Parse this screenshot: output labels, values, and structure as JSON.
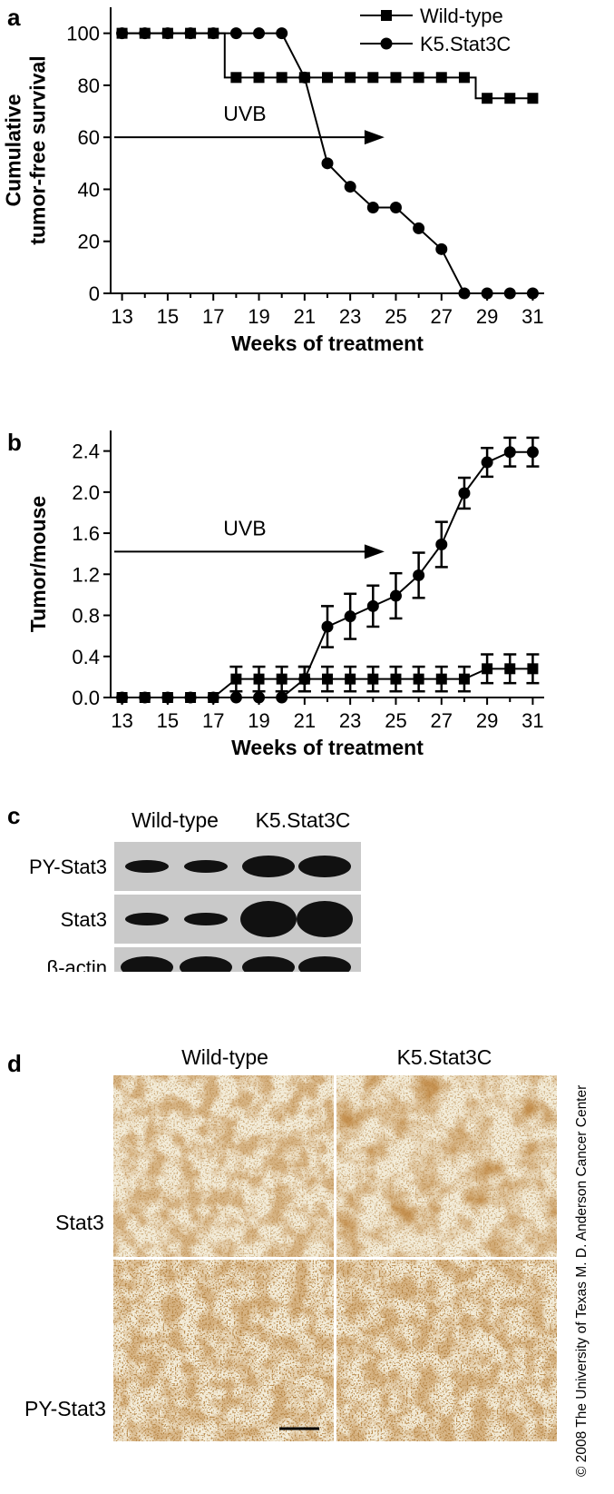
{
  "chart_data": [
    {
      "panel": "a",
      "type": "line",
      "xlabel": "Weeks of treatment",
      "ylabel": [
        "Cumulative",
        "tumor-free survival"
      ],
      "xlim": [
        12.5,
        31.5
      ],
      "ylim": [
        0,
        110
      ],
      "xticks": [
        13,
        15,
        17,
        19,
        21,
        23,
        25,
        27,
        29,
        31
      ],
      "yticks": [
        0,
        20,
        40,
        60,
        80,
        100
      ],
      "legend_position": "top-right",
      "annotation": {
        "text": "UVB",
        "arrow_from": 12.5,
        "arrow_to": 24.5,
        "y": 60
      },
      "series": [
        {
          "name": "Wild-type",
          "marker": "square",
          "x": [
            13,
            14,
            15,
            16,
            17,
            18,
            19,
            20,
            21,
            22,
            23,
            24,
            25,
            26,
            27,
            28,
            29,
            30,
            31
          ],
          "y": [
            100,
            100,
            100,
            100,
            100,
            83,
            83,
            83,
            83,
            83,
            83,
            83,
            83,
            83,
            83,
            83,
            75,
            75,
            75
          ],
          "step": true
        },
        {
          "name": "K5.Stat3C",
          "marker": "circle",
          "x": [
            13,
            14,
            15,
            16,
            17,
            18,
            19,
            20,
            21,
            22,
            23,
            24,
            25,
            26,
            27,
            28,
            29,
            30,
            31
          ],
          "y": [
            100,
            100,
            100,
            100,
            100,
            100,
            100,
            100,
            83,
            50,
            41,
            33,
            33,
            25,
            17,
            0,
            0,
            0,
            0
          ],
          "step": false
        }
      ]
    },
    {
      "panel": "b",
      "type": "line",
      "xlabel": "Weeks of treatment",
      "ylabel": [
        "Tumor/mouse"
      ],
      "xlim": [
        12.5,
        31.5
      ],
      "ylim": [
        0,
        2.6
      ],
      "xticks": [
        13,
        15,
        17,
        19,
        21,
        23,
        25,
        27,
        29,
        31
      ],
      "yticks": [
        0.0,
        0.4,
        0.8,
        1.2,
        1.6,
        2.0,
        2.4
      ],
      "annotation": {
        "text": "UVB",
        "arrow_from": 12.5,
        "arrow_to": 24.5,
        "y": 1.42
      },
      "series": [
        {
          "name": "Wild-type",
          "marker": "square",
          "x": [
            13,
            14,
            15,
            16,
            17,
            18,
            19,
            20,
            21,
            22,
            23,
            24,
            25,
            26,
            27,
            28,
            29,
            30,
            31
          ],
          "y": [
            0,
            0,
            0,
            0,
            0,
            0.18,
            0.18,
            0.18,
            0.18,
            0.18,
            0.18,
            0.18,
            0.18,
            0.18,
            0.18,
            0.18,
            0.28,
            0.28,
            0.28
          ],
          "err": [
            0,
            0,
            0,
            0,
            0,
            0.12,
            0.12,
            0.12,
            0.12,
            0.12,
            0.12,
            0.12,
            0.12,
            0.12,
            0.12,
            0.12,
            0.14,
            0.14,
            0.14
          ]
        },
        {
          "name": "K5.Stat3C",
          "marker": "circle",
          "x": [
            13,
            14,
            15,
            16,
            17,
            18,
            19,
            20,
            21,
            22,
            23,
            24,
            25,
            26,
            27,
            28,
            29,
            30,
            31
          ],
          "y": [
            0,
            0,
            0,
            0,
            0,
            0,
            0,
            0,
            0.18,
            0.69,
            0.79,
            0.89,
            0.99,
            1.19,
            1.49,
            1.99,
            2.29,
            2.39,
            2.39
          ],
          "err": [
            0,
            0,
            0,
            0,
            0,
            0,
            0,
            0,
            0.12,
            0.2,
            0.22,
            0.2,
            0.22,
            0.22,
            0.22,
            0.15,
            0.14,
            0.14,
            0.14
          ]
        }
      ]
    }
  ],
  "panel_letters": {
    "a": "a",
    "b": "b",
    "c": "c",
    "d": "d"
  },
  "western_blot": {
    "group_labels": [
      "Wild-type",
      "K5.Stat3C"
    ],
    "rows": [
      {
        "label": "PY-Stat3",
        "intensity": [
          "medium",
          "medium",
          "strong",
          "strong"
        ]
      },
      {
        "label": "Stat3",
        "intensity": [
          "medium",
          "medium",
          "very-strong",
          "very-strong"
        ]
      },
      {
        "label": "β-actin",
        "intensity": [
          "strong",
          "strong",
          "strong",
          "strong"
        ]
      }
    ]
  },
  "histology": {
    "column_labels": [
      "Wild-type",
      "K5.Stat3C"
    ],
    "row_labels": [
      "Stat3",
      "PY-Stat3"
    ],
    "stain_color": "#8b4513",
    "background_color": "#f3ecd9"
  },
  "copyright": "© 2008 The University of Texas M. D. Anderson Cancer Center"
}
